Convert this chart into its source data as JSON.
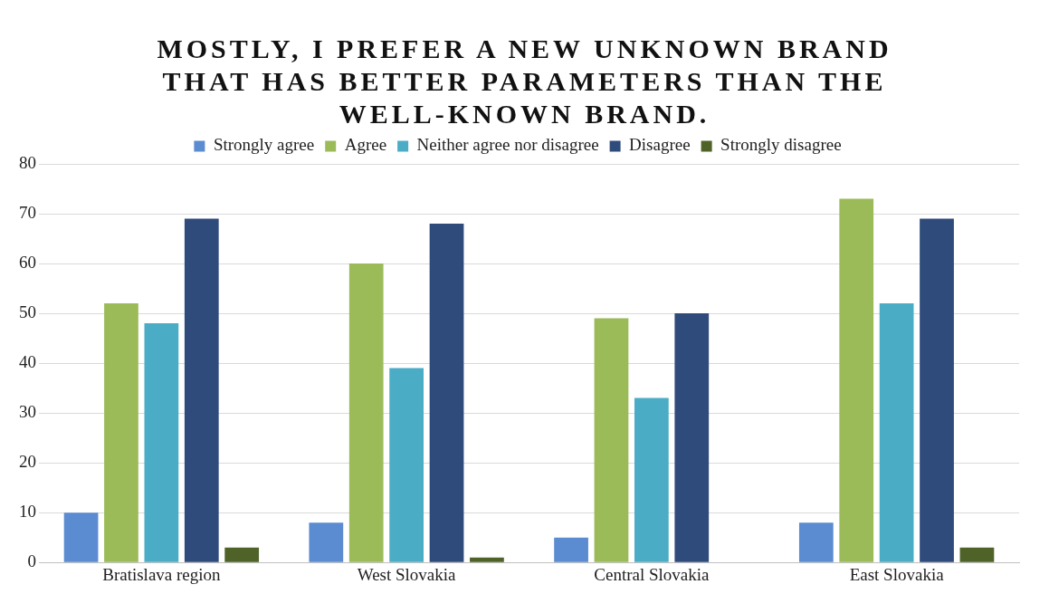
{
  "chart_data": {
    "type": "bar",
    "title": "MOSTLY, I PREFER A NEW UNKNOWN BRAND THAT HAS BETTER PARAMETERS THAN THE WELL-KNOWN BRAND.",
    "categories": [
      "Bratislava region",
      "West Slovakia",
      "Central Slovakia",
      "East Slovakia"
    ],
    "series": [
      {
        "name": "Strongly agree",
        "color": "#5b8bd0",
        "values": [
          10,
          8,
          5,
          8
        ]
      },
      {
        "name": "Agree",
        "color": "#9bbb59",
        "values": [
          52,
          60,
          49,
          73
        ]
      },
      {
        "name": "Neither agree nor disagree",
        "color": "#4bacc6",
        "values": [
          48,
          39,
          33,
          52
        ]
      },
      {
        "name": "Disagree",
        "color": "#2f4b7c",
        "values": [
          69,
          68,
          50,
          69
        ]
      },
      {
        "name": "Strongly disagree",
        "color": "#4f6228",
        "values": [
          3,
          1,
          0,
          3
        ]
      }
    ],
    "ylim": [
      0,
      80
    ],
    "yticks": [
      0,
      10,
      20,
      30,
      40,
      50,
      60,
      70,
      80
    ],
    "grid": "y",
    "legend": "top"
  }
}
